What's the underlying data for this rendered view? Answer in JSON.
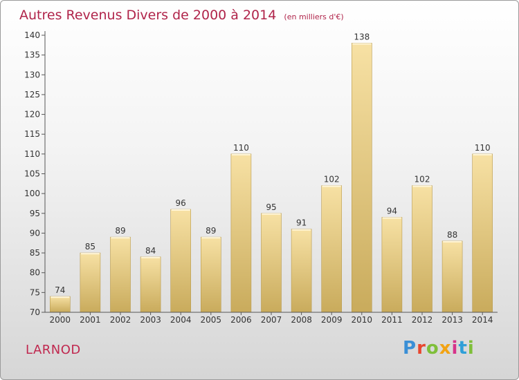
{
  "header": {
    "title": "Autres Revenus Divers de 2000 à 2014",
    "subtitle": "(en milliers d'€)"
  },
  "footer": {
    "location": "LARNOD",
    "brand_letters": [
      "P",
      "r",
      "o",
      "x",
      "i",
      "t",
      "i"
    ],
    "brand_colors": [
      "#3a8fd6",
      "#e8462e",
      "#7fbf3a",
      "#f2a313",
      "#d6338a",
      "#2f9fd8",
      "#7fbf3a"
    ]
  },
  "colors": {
    "bar_top": "#f7e1a4",
    "bar_bottom": "#c9ab5c",
    "bar_side": "#b89a4e",
    "axis": "#555555",
    "grid": "#e6e6e6"
  },
  "chart_data": {
    "type": "bar",
    "title": "Autres Revenus Divers de 2000 à 2014",
    "subtitle": "(en milliers d'€)",
    "categories": [
      "2000",
      "2001",
      "2002",
      "2003",
      "2004",
      "2005",
      "2006",
      "2007",
      "2008",
      "2009",
      "2010",
      "2011",
      "2012",
      "2013",
      "2014"
    ],
    "values": [
      74,
      85,
      89,
      84,
      96,
      89,
      110,
      95,
      91,
      102,
      138,
      94,
      102,
      88,
      110
    ],
    "ylim": [
      70,
      140
    ],
    "yticks": [
      70,
      75,
      80,
      85,
      90,
      95,
      100,
      105,
      110,
      115,
      120,
      125,
      130,
      135,
      140
    ],
    "xlabel": "",
    "ylabel": "",
    "grid": false,
    "data_labels": true
  }
}
